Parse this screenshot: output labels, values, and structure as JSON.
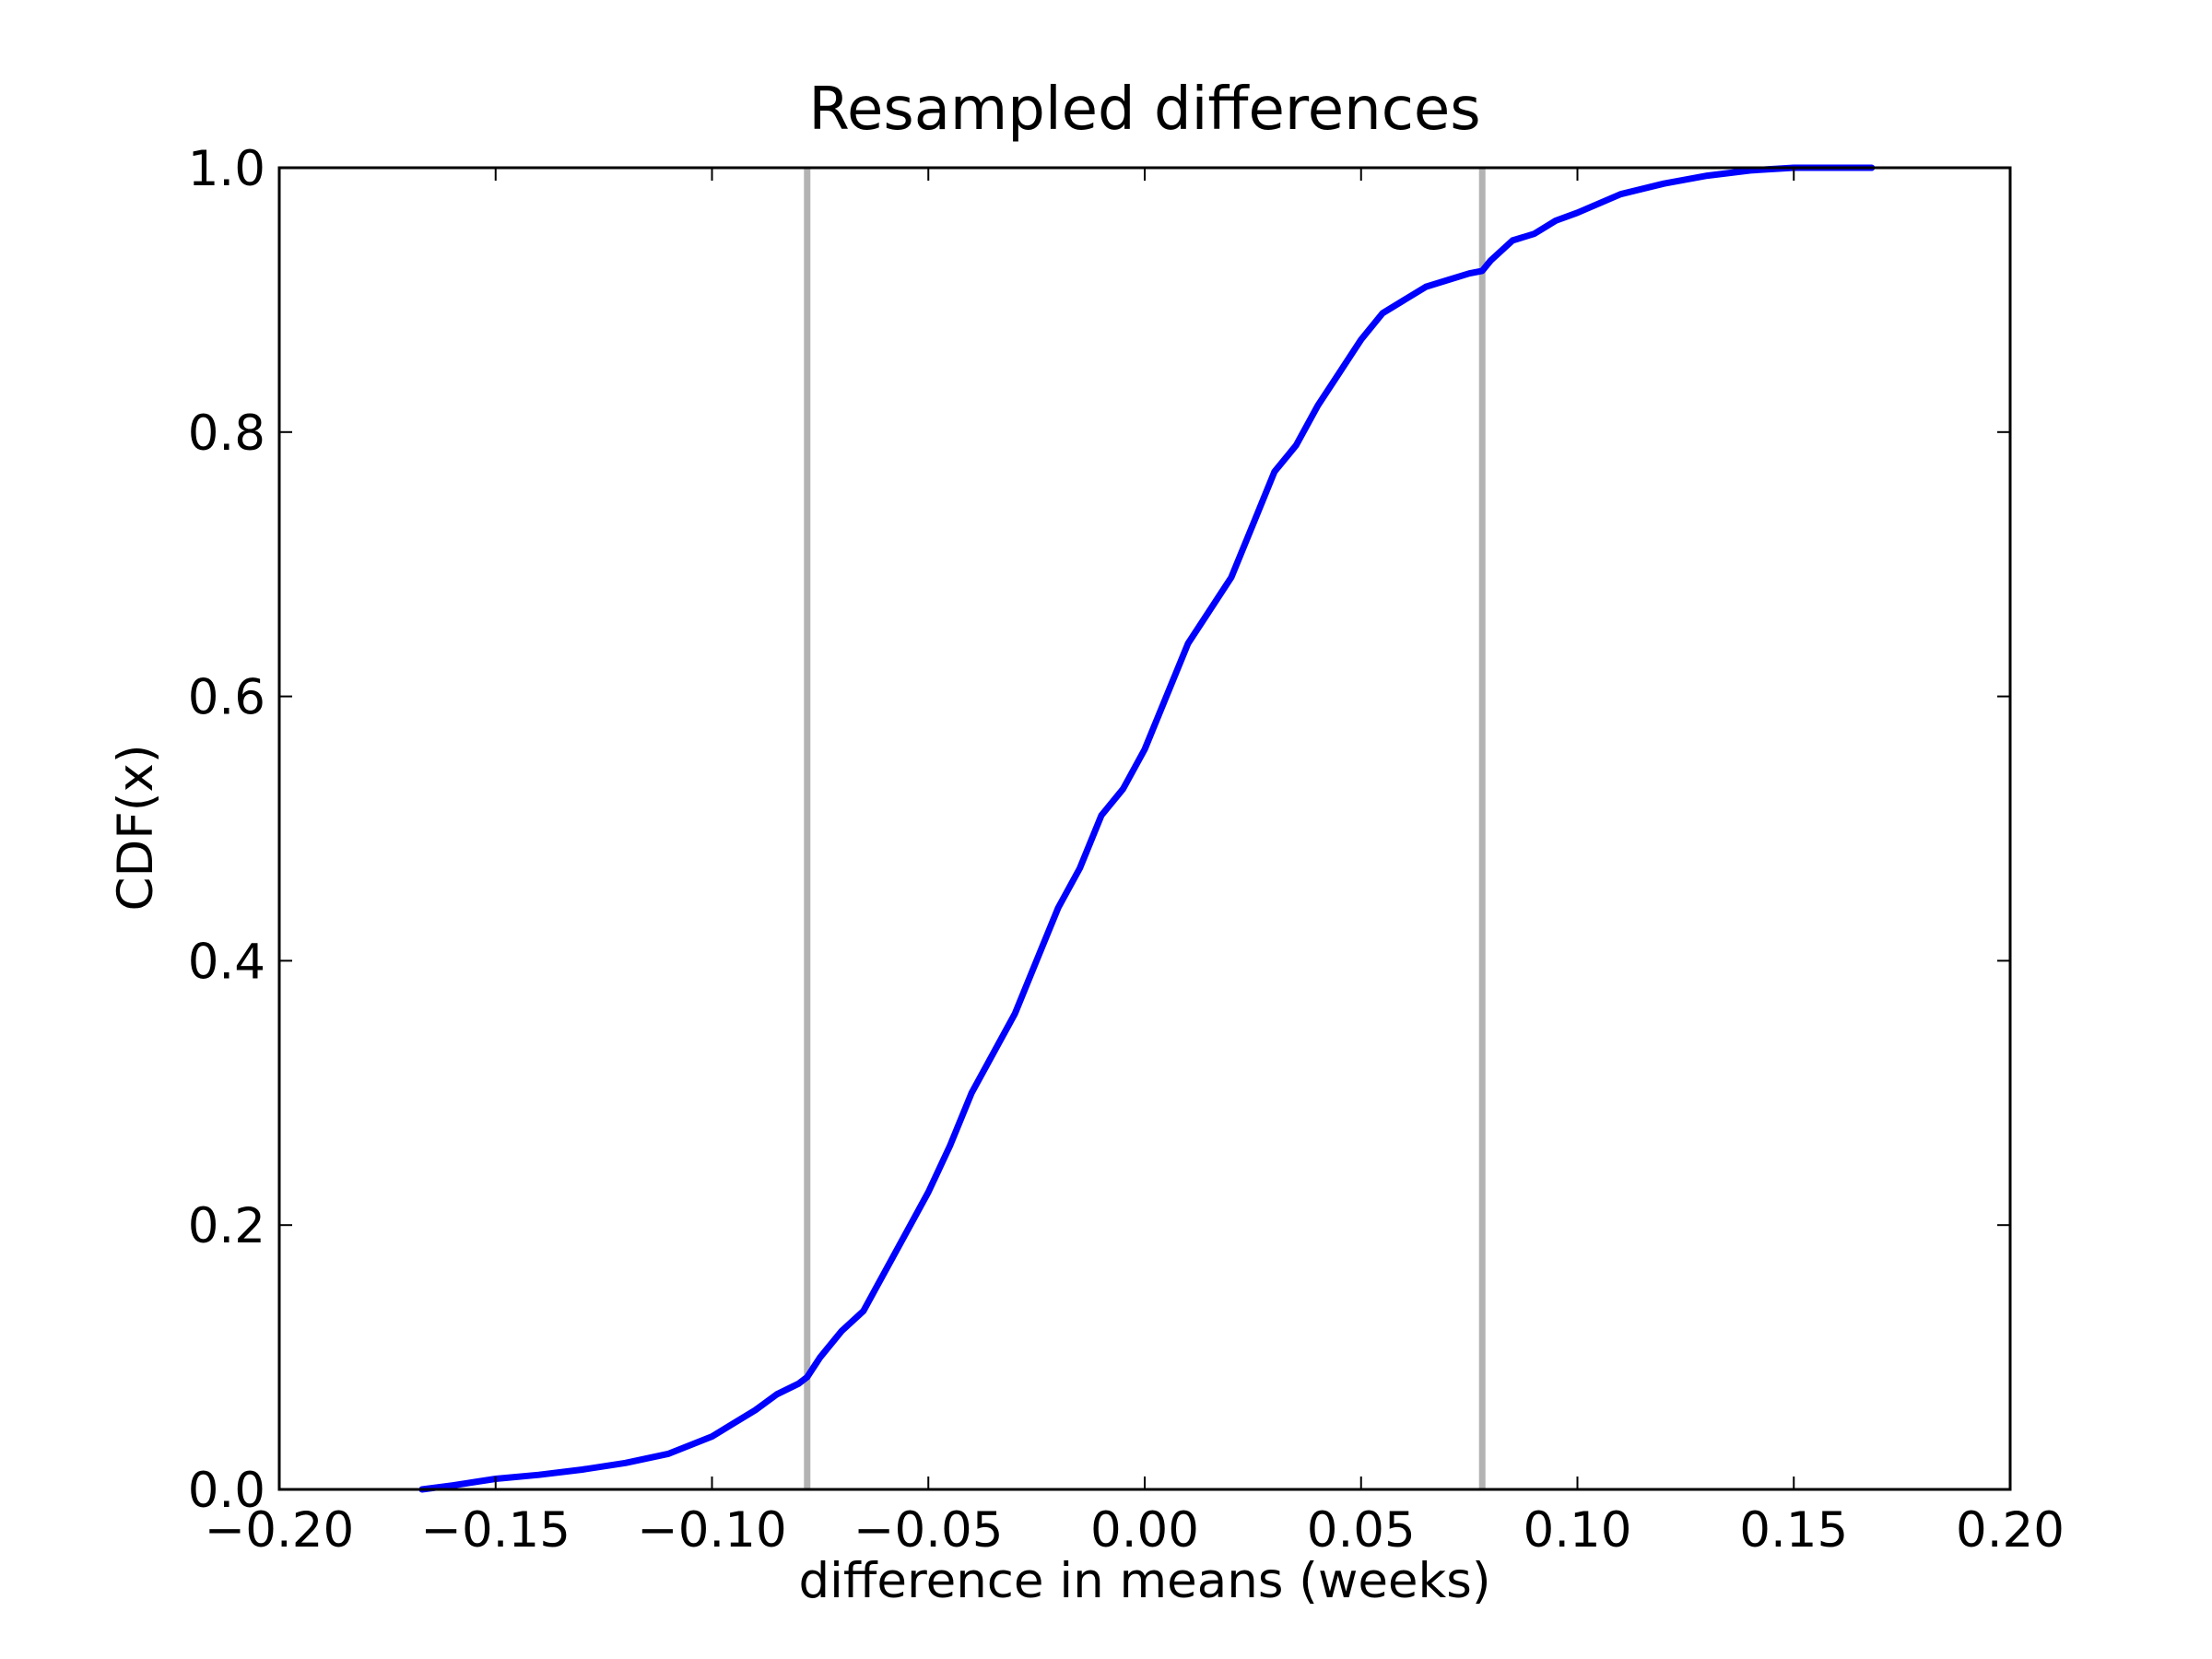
{
  "chart_data": {
    "type": "line",
    "title": "Resampled differences",
    "xlabel": "difference in means (weeks)",
    "ylabel": "CDF(x)",
    "xlim": [
      -0.2,
      0.2
    ],
    "ylim": [
      0.0,
      1.0
    ],
    "x_ticks": [
      "−0.20",
      "−0.15",
      "−0.10",
      "−0.05",
      "0.00",
      "0.05",
      "0.10",
      "0.15",
      "0.20"
    ],
    "y_ticks": [
      "0.0",
      "0.2",
      "0.4",
      "0.6",
      "0.8",
      "1.0"
    ],
    "grid": false,
    "legend": "none",
    "reference_lines": [
      {
        "x": -0.078,
        "color": "#b3b3b3"
      },
      {
        "x": 0.078,
        "color": "#b3b3b3"
      }
    ],
    "series": [
      {
        "color": "#0000ff",
        "x": [
          -0.167,
          -0.16,
          -0.15,
          -0.14,
          -0.13,
          -0.12,
          -0.11,
          -0.1,
          -0.095,
          -0.09,
          -0.085,
          -0.08,
          -0.078,
          -0.075,
          -0.07,
          -0.065,
          -0.06,
          -0.055,
          -0.05,
          -0.045,
          -0.04,
          -0.035,
          -0.03,
          -0.025,
          -0.02,
          -0.015,
          -0.01,
          -0.005,
          0.0,
          0.005,
          0.01,
          0.015,
          0.02,
          0.025,
          0.03,
          0.035,
          0.04,
          0.045,
          0.05,
          0.055,
          0.06,
          0.065,
          0.07,
          0.075,
          0.078,
          0.08,
          0.085,
          0.09,
          0.095,
          0.1,
          0.11,
          0.12,
          0.13,
          0.14,
          0.15,
          0.168
        ],
        "y": [
          0.0,
          0.003,
          0.008,
          0.011,
          0.015,
          0.02,
          0.027,
          0.04,
          0.05,
          0.06,
          0.072,
          0.08,
          0.085,
          0.1,
          0.12,
          0.135,
          0.165,
          0.195,
          0.225,
          0.26,
          0.3,
          0.33,
          0.36,
          0.4,
          0.44,
          0.47,
          0.51,
          0.53,
          0.56,
          0.6,
          0.64,
          0.665,
          0.69,
          0.73,
          0.77,
          0.79,
          0.82,
          0.845,
          0.87,
          0.89,
          0.9,
          0.91,
          0.915,
          0.92,
          0.922,
          0.93,
          0.945,
          0.95,
          0.96,
          0.966,
          0.98,
          0.988,
          0.994,
          0.998,
          1.0,
          1.0
        ]
      }
    ]
  }
}
